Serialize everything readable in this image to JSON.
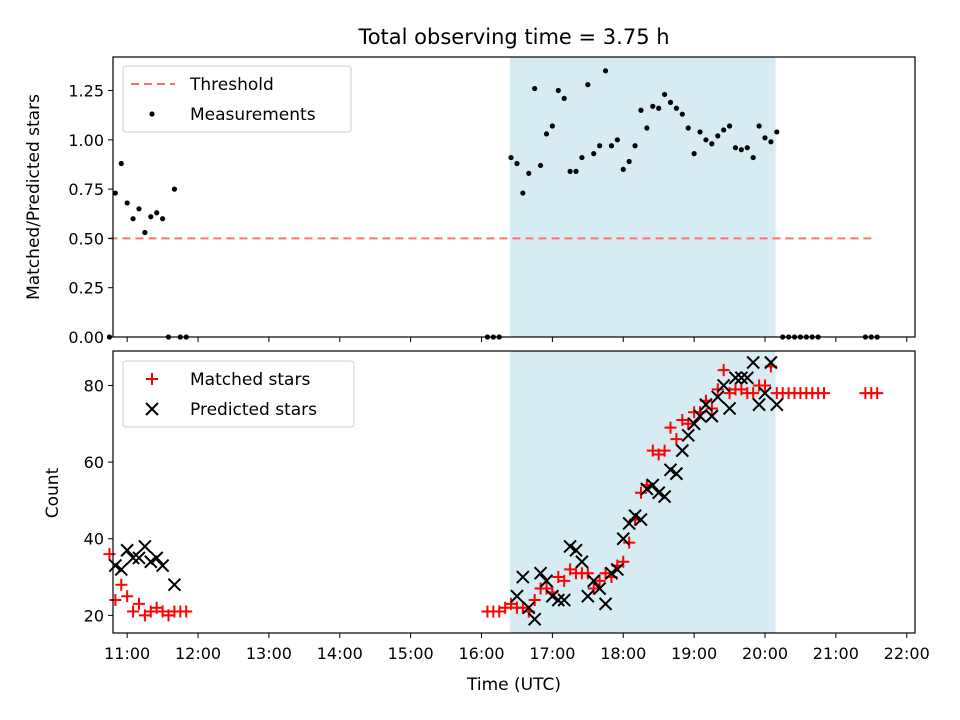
{
  "title": "Total observing time = 3.75 h",
  "colors": {
    "threshold": "#ff7070",
    "measurement": "#000000",
    "matched": "#ff0000",
    "predicted": "#000000",
    "shade": "#add8e6"
  },
  "chart_data": [
    {
      "type": "scatter",
      "ylabel": "Matched/Predicted stars",
      "ylim": [
        0,
        1.42
      ],
      "xlim": [
        "10:48",
        "22:07"
      ],
      "x_ticks": [
        "11:00",
        "12:00",
        "13:00",
        "14:00",
        "15:00",
        "16:00",
        "17:00",
        "18:00",
        "19:00",
        "20:00",
        "21:00",
        "22:00"
      ],
      "y_ticks": [
        "0.00",
        "0.25",
        "0.50",
        "0.75",
        "1.00",
        "1.25"
      ],
      "legend_position": "top-left",
      "shaded_interval": [
        "16:24",
        "20:09"
      ],
      "threshold": {
        "name": "Threshold",
        "value": 0.5,
        "x_range": [
          "10:45",
          "21:30"
        ]
      },
      "series": [
        {
          "name": "Measurements",
          "points": [
            [
              "10:45",
              0.0
            ],
            [
              "10:50",
              0.73
            ],
            [
              "10:55",
              0.88
            ],
            [
              "11:00",
              0.68
            ],
            [
              "11:05",
              0.6
            ],
            [
              "11:10",
              0.65
            ],
            [
              "11:15",
              0.53
            ],
            [
              "11:20",
              0.61
            ],
            [
              "11:25",
              0.63
            ],
            [
              "11:30",
              0.6
            ],
            [
              "11:35",
              0.0
            ],
            [
              "11:40",
              0.75
            ],
            [
              "11:45",
              0.0
            ],
            [
              "11:50",
              0.0
            ],
            [
              "16:05",
              0.0
            ],
            [
              "16:10",
              0.0
            ],
            [
              "16:15",
              0.0
            ],
            [
              "16:25",
              0.91
            ],
            [
              "16:30",
              0.88
            ],
            [
              "16:35",
              0.73
            ],
            [
              "16:40",
              0.83
            ],
            [
              "16:45",
              1.26
            ],
            [
              "16:50",
              0.87
            ],
            [
              "16:55",
              1.03
            ],
            [
              "17:00",
              1.07
            ],
            [
              "17:05",
              1.25
            ],
            [
              "17:10",
              1.21
            ],
            [
              "17:15",
              0.84
            ],
            [
              "17:20",
              0.84
            ],
            [
              "17:25",
              0.91
            ],
            [
              "17:30",
              1.28
            ],
            [
              "17:35",
              0.93
            ],
            [
              "17:40",
              0.97
            ],
            [
              "17:45",
              1.35
            ],
            [
              "17:50",
              0.97
            ],
            [
              "17:55",
              1.0
            ],
            [
              "18:00",
              0.85
            ],
            [
              "18:05",
              0.89
            ],
            [
              "18:10",
              0.97
            ],
            [
              "18:15",
              1.15
            ],
            [
              "18:20",
              1.06
            ],
            [
              "18:25",
              1.17
            ],
            [
              "18:30",
              1.16
            ],
            [
              "18:35",
              1.23
            ],
            [
              "18:40",
              1.19
            ],
            [
              "18:45",
              1.16
            ],
            [
              "18:50",
              1.13
            ],
            [
              "18:55",
              1.06
            ],
            [
              "19:00",
              0.93
            ],
            [
              "19:05",
              1.04
            ],
            [
              "19:10",
              1.0
            ],
            [
              "19:15",
              0.98
            ],
            [
              "19:20",
              1.02
            ],
            [
              "19:25",
              1.05
            ],
            [
              "19:30",
              1.07
            ],
            [
              "19:35",
              0.96
            ],
            [
              "19:40",
              0.95
            ],
            [
              "19:45",
              0.96
            ],
            [
              "19:50",
              0.91
            ],
            [
              "19:55",
              1.07
            ],
            [
              "20:00",
              1.01
            ],
            [
              "20:05",
              0.99
            ],
            [
              "20:10",
              1.04
            ],
            [
              "20:15",
              0.0
            ],
            [
              "20:20",
              0.0
            ],
            [
              "20:25",
              0.0
            ],
            [
              "20:30",
              0.0
            ],
            [
              "20:35",
              0.0
            ],
            [
              "20:40",
              0.0
            ],
            [
              "20:45",
              0.0
            ],
            [
              "21:25",
              0.0
            ],
            [
              "21:30",
              0.0
            ],
            [
              "21:35",
              0.0
            ]
          ]
        }
      ]
    },
    {
      "type": "scatter",
      "xlabel": "Time (UTC)",
      "ylabel": "Count",
      "ylim": [
        15.4,
        89
      ],
      "xlim": [
        "10:48",
        "22:07"
      ],
      "x_ticks": [
        "11:00",
        "12:00",
        "13:00",
        "14:00",
        "15:00",
        "16:00",
        "17:00",
        "18:00",
        "19:00",
        "20:00",
        "21:00",
        "22:00"
      ],
      "y_ticks": [
        "20",
        "40",
        "60",
        "80"
      ],
      "legend_position": "top-left",
      "shaded_interval": [
        "16:24",
        "20:09"
      ],
      "series": [
        {
          "name": "Matched stars",
          "marker": "plus",
          "points": [
            [
              "10:45",
              36
            ],
            [
              "10:50",
              24
            ],
            [
              "10:55",
              28
            ],
            [
              "11:00",
              25
            ],
            [
              "11:05",
              21
            ],
            [
              "11:10",
              23
            ],
            [
              "11:15",
              20
            ],
            [
              "11:20",
              21
            ],
            [
              "11:25",
              22
            ],
            [
              "11:30",
              21
            ],
            [
              "11:35",
              20
            ],
            [
              "11:40",
              21
            ],
            [
              "11:45",
              21
            ],
            [
              "11:50",
              21
            ],
            [
              "16:05",
              21
            ],
            [
              "16:10",
              21
            ],
            [
              "16:15",
              21
            ],
            [
              "16:20",
              22
            ],
            [
              "16:25",
              23
            ],
            [
              "16:30",
              22
            ],
            [
              "16:35",
              22
            ],
            [
              "16:40",
              21
            ],
            [
              "16:45",
              24
            ],
            [
              "16:50",
              27
            ],
            [
              "16:55",
              27
            ],
            [
              "17:00",
              26
            ],
            [
              "17:05",
              30
            ],
            [
              "17:10",
              29
            ],
            [
              "17:15",
              32
            ],
            [
              "17:20",
              31
            ],
            [
              "17:25",
              31
            ],
            [
              "17:30",
              31
            ],
            [
              "17:35",
              27
            ],
            [
              "17:40",
              29
            ],
            [
              "17:45",
              31
            ],
            [
              "17:50",
              30
            ],
            [
              "17:55",
              33
            ],
            [
              "18:00",
              34
            ],
            [
              "18:05",
              39
            ],
            [
              "18:10",
              45
            ],
            [
              "18:15",
              52
            ],
            [
              "18:20",
              54
            ],
            [
              "18:25",
              63
            ],
            [
              "18:30",
              62
            ],
            [
              "18:35",
              63
            ],
            [
              "18:40",
              69
            ],
            [
              "18:45",
              66
            ],
            [
              "18:50",
              71
            ],
            [
              "18:55",
              70
            ],
            [
              "19:00",
              73
            ],
            [
              "19:05",
              73
            ],
            [
              "19:10",
              76
            ],
            [
              "19:15",
              74
            ],
            [
              "19:20",
              79
            ],
            [
              "19:25",
              84
            ],
            [
              "19:30",
              78
            ],
            [
              "19:35",
              79
            ],
            [
              "19:40",
              79
            ],
            [
              "19:45",
              78
            ],
            [
              "19:50",
              78
            ],
            [
              "19:55",
              80
            ],
            [
              "20:00",
              80
            ],
            [
              "20:05",
              85
            ],
            [
              "20:10",
              78
            ],
            [
              "20:15",
              78
            ],
            [
              "20:20",
              78
            ],
            [
              "20:25",
              78
            ],
            [
              "20:30",
              78
            ],
            [
              "20:35",
              78
            ],
            [
              "20:40",
              78
            ],
            [
              "20:45",
              78
            ],
            [
              "20:50",
              78
            ],
            [
              "21:25",
              78
            ],
            [
              "21:30",
              78
            ],
            [
              "21:35",
              78
            ]
          ]
        },
        {
          "name": "Predicted stars",
          "marker": "x",
          "points": [
            [
              "10:50",
              33
            ],
            [
              "10:55",
              32
            ],
            [
              "11:00",
              37
            ],
            [
              "11:05",
              35
            ],
            [
              "11:10",
              35
            ],
            [
              "11:15",
              38
            ],
            [
              "11:20",
              34
            ],
            [
              "11:25",
              35
            ],
            [
              "11:30",
              33
            ],
            [
              "11:40",
              28
            ],
            [
              "16:30",
              25
            ],
            [
              "16:35",
              30
            ],
            [
              "16:40",
              22
            ],
            [
              "16:45",
              19
            ],
            [
              "16:50",
              31
            ],
            [
              "16:55",
              29
            ],
            [
              "17:00",
              25
            ],
            [
              "17:05",
              24
            ],
            [
              "17:10",
              24
            ],
            [
              "17:15",
              38
            ],
            [
              "17:20",
              37
            ],
            [
              "17:25",
              34
            ],
            [
              "17:30",
              25
            ],
            [
              "17:35",
              29
            ],
            [
              "17:40",
              27
            ],
            [
              "17:45",
              23
            ],
            [
              "17:50",
              31
            ],
            [
              "17:55",
              32
            ],
            [
              "18:00",
              40
            ],
            [
              "18:05",
              44
            ],
            [
              "18:10",
              46
            ],
            [
              "18:15",
              45
            ],
            [
              "18:20",
              53
            ],
            [
              "18:25",
              54
            ],
            [
              "18:30",
              52
            ],
            [
              "18:35",
              51
            ],
            [
              "18:40",
              58
            ],
            [
              "18:45",
              57
            ],
            [
              "18:50",
              63
            ],
            [
              "18:55",
              67
            ],
            [
              "19:00",
              70
            ],
            [
              "19:05",
              72
            ],
            [
              "19:10",
              75
            ],
            [
              "19:15",
              72
            ],
            [
              "19:20",
              77
            ],
            [
              "19:25",
              80
            ],
            [
              "19:30",
              74
            ],
            [
              "19:35",
              82
            ],
            [
              "19:40",
              82
            ],
            [
              "19:45",
              82
            ],
            [
              "19:50",
              86
            ],
            [
              "19:55",
              75
            ],
            [
              "20:00",
              78
            ],
            [
              "20:05",
              86
            ],
            [
              "20:10",
              75
            ]
          ]
        }
      ]
    }
  ]
}
